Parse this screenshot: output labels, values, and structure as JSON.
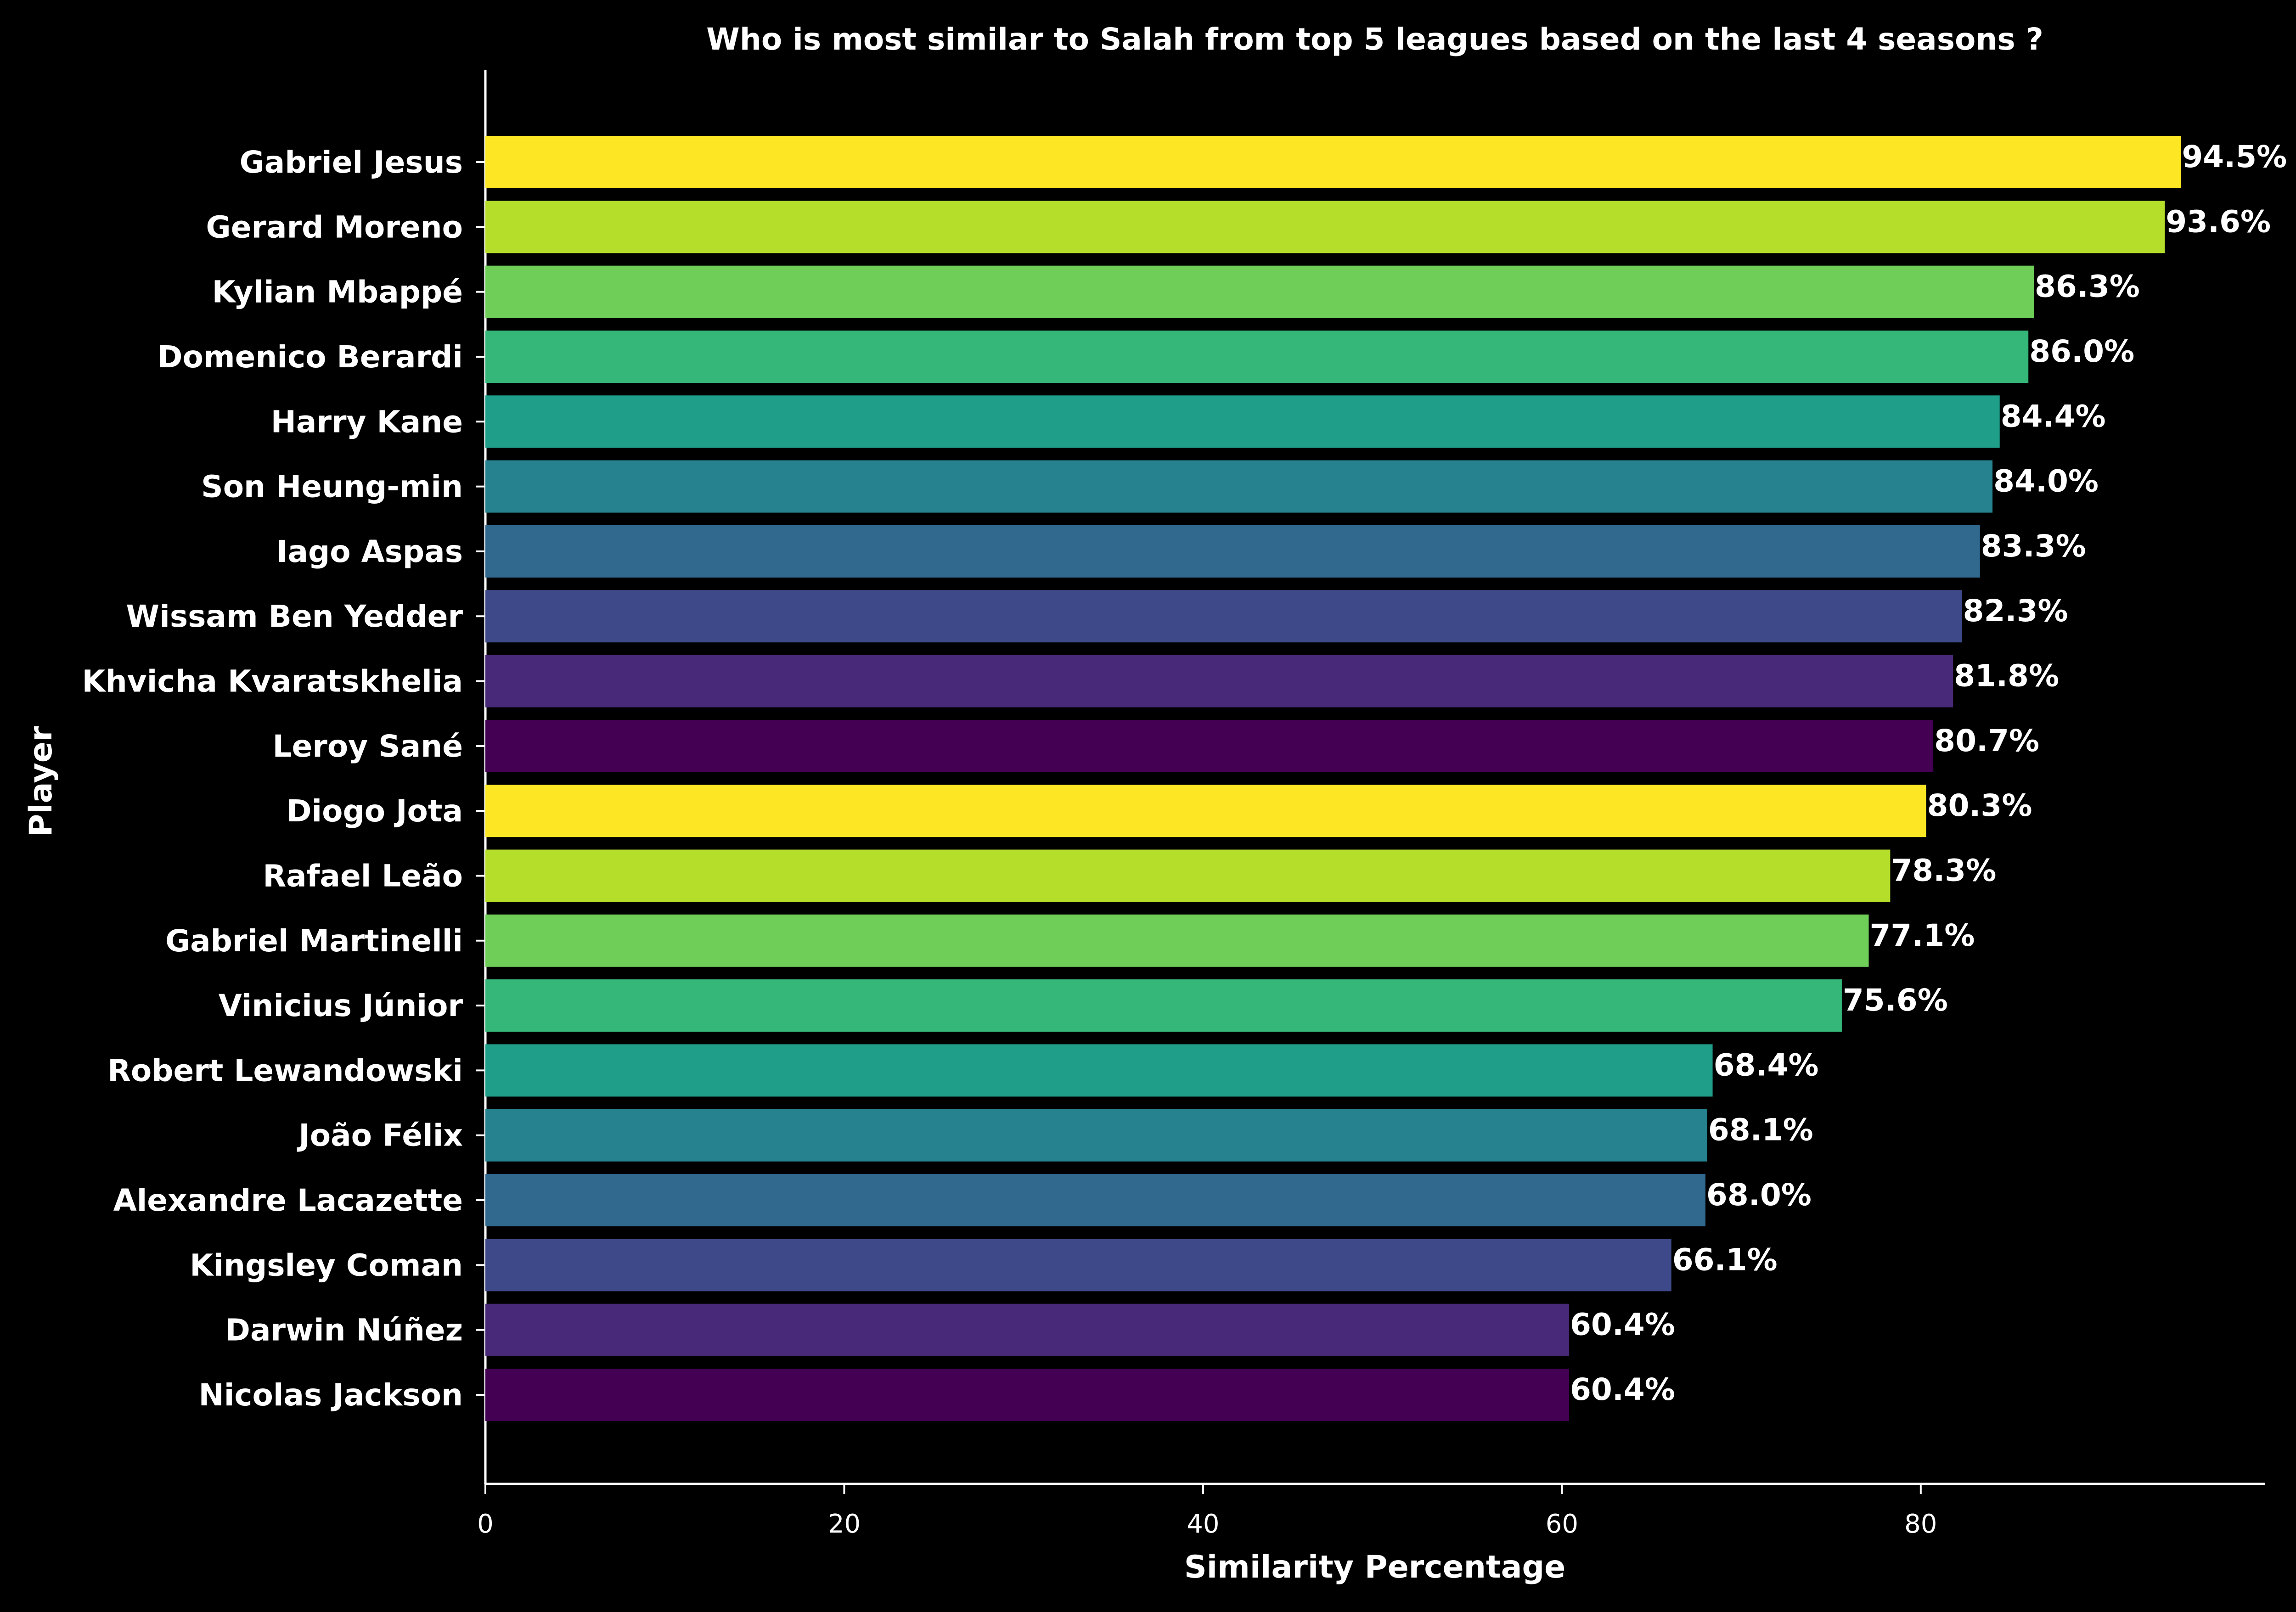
{
  "chart_data": {
    "type": "bar",
    "orientation": "horizontal",
    "title": "Who is most similar to Salah from top 5 leagues based on the last 4 seasons ?",
    "xlabel": "Similarity Percentage",
    "ylabel": "Player",
    "xlim": [
      0,
      99.2
    ],
    "xticks": [
      0,
      20,
      40,
      60,
      80
    ],
    "grid": false,
    "categories": [
      "Gabriel Jesus",
      "Gerard Moreno",
      "Kylian Mbappé",
      "Domenico Berardi",
      "Harry Kane",
      "Son Heung-min",
      "Iago Aspas",
      "Wissam Ben Yedder",
      "Khvicha Kvaratskhelia",
      "Leroy Sané",
      "Diogo Jota",
      "Rafael Leão",
      "Gabriel Martinelli",
      "Vinicius Júnior",
      "Robert Lewandowski",
      "João Félix",
      "Alexandre Lacazette",
      "Kingsley Coman",
      "Darwin Núñez",
      "Nicolas Jackson"
    ],
    "values": [
      94.5,
      93.6,
      86.3,
      86.0,
      84.4,
      84.0,
      83.3,
      82.3,
      81.8,
      80.7,
      80.3,
      78.3,
      77.1,
      75.6,
      68.4,
      68.1,
      68.0,
      66.1,
      60.4,
      60.4
    ],
    "value_labels": [
      "94.5%",
      "93.6%",
      "86.3%",
      "86.0%",
      "84.4%",
      "84.0%",
      "83.3%",
      "82.3%",
      "81.8%",
      "80.7%",
      "80.3%",
      "78.3%",
      "77.1%",
      "75.6%",
      "68.4%",
      "68.1%",
      "68.0%",
      "66.1%",
      "60.4%",
      "60.4%"
    ],
    "colors": [
      "#fde725",
      "#b5de2b",
      "#6ece58",
      "#35b779",
      "#1f9e89",
      "#26828e",
      "#31688e",
      "#3e4989",
      "#482878",
      "#440154",
      "#fde725",
      "#b5de2b",
      "#6ece58",
      "#35b779",
      "#1f9e89",
      "#26828e",
      "#31688e",
      "#3e4989",
      "#482878",
      "#440154"
    ]
  }
}
